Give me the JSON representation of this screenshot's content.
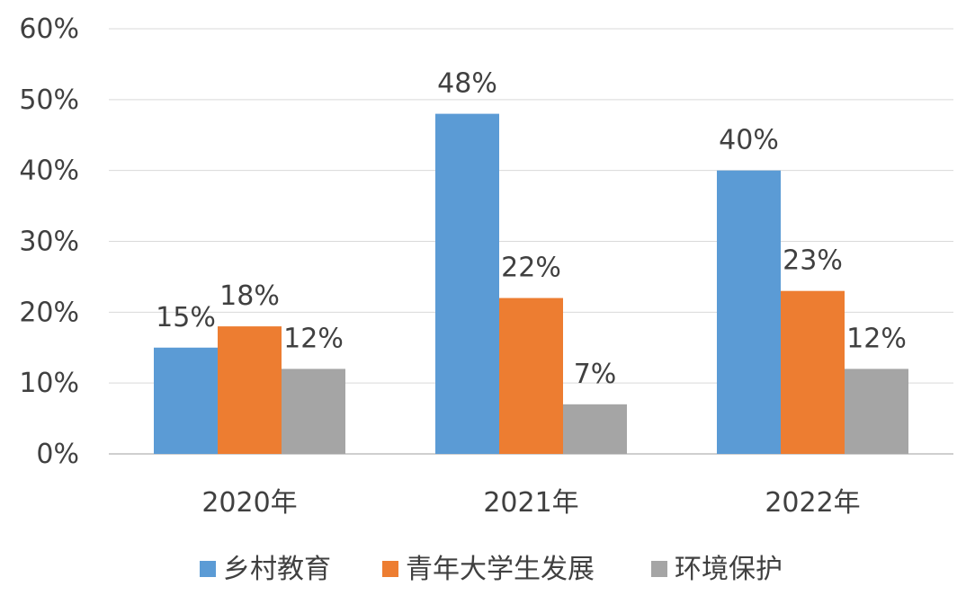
{
  "chart_data": {
    "type": "bar",
    "categories": [
      "2020年",
      "2021年",
      "2022年"
    ],
    "series": [
      {
        "name": "乡村教育",
        "values": [
          15,
          48,
          40
        ],
        "labels": [
          "15%",
          "48%",
          "40%"
        ],
        "color": "#5b9bd5"
      },
      {
        "name": "青年大学生发展",
        "values": [
          18,
          22,
          23
        ],
        "labels": [
          "18%",
          "22%",
          "23%"
        ],
        "color": "#ed7d31"
      },
      {
        "name": "环境保护",
        "values": [
          12,
          7,
          12
        ],
        "labels": [
          "12%",
          "7%",
          "12%"
        ],
        "color": "#a5a5a5"
      }
    ],
    "yticks": [
      "0%",
      "10%",
      "20%",
      "30%",
      "40%",
      "50%",
      "60%"
    ],
    "ylim": [
      0,
      60
    ],
    "grid": true,
    "legend_position": "bottom"
  }
}
